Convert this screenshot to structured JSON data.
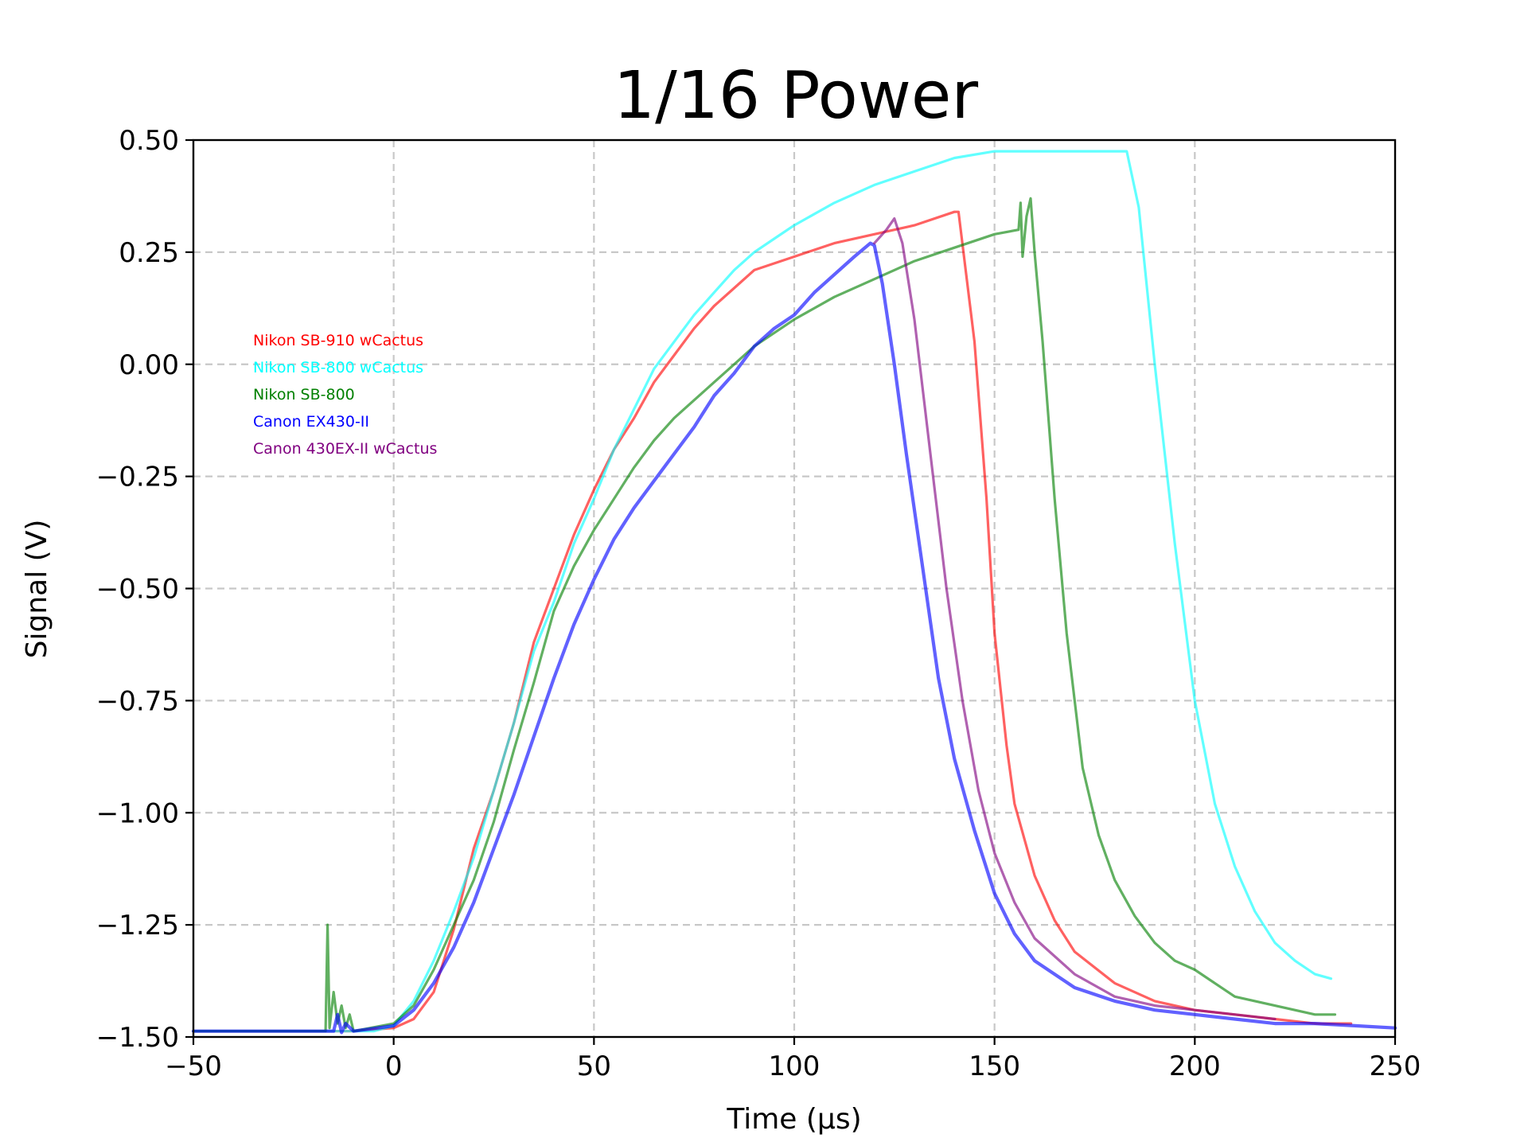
{
  "chart_data": {
    "type": "line",
    "title": "1/16 Power",
    "xlabel": "Time (µs)",
    "ylabel": "Signal (V)",
    "xlim": [
      -50,
      250
    ],
    "ylim": [
      -1.5,
      0.5
    ],
    "x_ticks": [
      -50,
      0,
      50,
      100,
      150,
      200,
      250
    ],
    "x_tick_labels": [
      "−50",
      "0",
      "50",
      "100",
      "150",
      "200",
      "250"
    ],
    "y_ticks": [
      0.5,
      0.25,
      0.0,
      -0.25,
      -0.5,
      -0.75,
      -1.0,
      -1.25,
      -1.5
    ],
    "y_tick_labels": [
      "0.50",
      "0.25",
      "0.00",
      "−0.25",
      "−0.50",
      "−0.75",
      "−1.00",
      "−1.25",
      "−1.50"
    ],
    "grid": true,
    "legend_position": "upper-left",
    "series": [
      {
        "name": "Nikon SB-910 wCactus",
        "color": "#ff0000",
        "points": [
          [
            -50,
            -1.487
          ],
          [
            -10,
            -1.487
          ],
          [
            0,
            -1.48
          ],
          [
            5,
            -1.46
          ],
          [
            10,
            -1.4
          ],
          [
            15,
            -1.26
          ],
          [
            20,
            -1.08
          ],
          [
            25,
            -0.95
          ],
          [
            30,
            -0.8
          ],
          [
            35,
            -0.62
          ],
          [
            40,
            -0.5
          ],
          [
            45,
            -0.38
          ],
          [
            50,
            -0.28
          ],
          [
            55,
            -0.19
          ],
          [
            60,
            -0.12
          ],
          [
            65,
            -0.04
          ],
          [
            70,
            0.02
          ],
          [
            75,
            0.08
          ],
          [
            80,
            0.13
          ],
          [
            85,
            0.17
          ],
          [
            90,
            0.21
          ],
          [
            100,
            0.24
          ],
          [
            110,
            0.27
          ],
          [
            120,
            0.29
          ],
          [
            130,
            0.31
          ],
          [
            140,
            0.34
          ],
          [
            141,
            0.34
          ],
          [
            145,
            0.05
          ],
          [
            148,
            -0.3
          ],
          [
            150,
            -0.6
          ],
          [
            153,
            -0.85
          ],
          [
            155,
            -0.98
          ],
          [
            160,
            -1.14
          ],
          [
            165,
            -1.24
          ],
          [
            170,
            -1.31
          ],
          [
            180,
            -1.38
          ],
          [
            190,
            -1.42
          ],
          [
            200,
            -1.44
          ],
          [
            210,
            -1.45
          ],
          [
            220,
            -1.46
          ],
          [
            230,
            -1.47
          ],
          [
            239,
            -1.47
          ]
        ]
      },
      {
        "name": "Nikon SB-800 wCactus",
        "color": "#00ffff",
        "points": [
          [
            -50,
            -1.487
          ],
          [
            -20,
            -1.487
          ],
          [
            -10,
            -1.487
          ],
          [
            -5,
            -1.487
          ],
          [
            0,
            -1.475
          ],
          [
            5,
            -1.42
          ],
          [
            10,
            -1.33
          ],
          [
            15,
            -1.22
          ],
          [
            20,
            -1.1
          ],
          [
            25,
            -0.95
          ],
          [
            30,
            -0.8
          ],
          [
            35,
            -0.64
          ],
          [
            40,
            -0.53
          ],
          [
            45,
            -0.4
          ],
          [
            50,
            -0.3
          ],
          [
            55,
            -0.19
          ],
          [
            60,
            -0.1
          ],
          [
            65,
            -0.01
          ],
          [
            70,
            0.05
          ],
          [
            75,
            0.11
          ],
          [
            80,
            0.16
          ],
          [
            85,
            0.21
          ],
          [
            90,
            0.25
          ],
          [
            95,
            0.28
          ],
          [
            100,
            0.31
          ],
          [
            110,
            0.36
          ],
          [
            120,
            0.4
          ],
          [
            130,
            0.43
          ],
          [
            140,
            0.46
          ],
          [
            150,
            0.475
          ],
          [
            170,
            0.475
          ],
          [
            183,
            0.475
          ],
          [
            186,
            0.35
          ],
          [
            190,
            0.0
          ],
          [
            195,
            -0.4
          ],
          [
            200,
            -0.75
          ],
          [
            205,
            -0.98
          ],
          [
            210,
            -1.12
          ],
          [
            215,
            -1.22
          ],
          [
            220,
            -1.29
          ],
          [
            225,
            -1.33
          ],
          [
            230,
            -1.36
          ],
          [
            234,
            -1.37
          ]
        ]
      },
      {
        "name": "Nikon SB-800",
        "color": "#008000",
        "points": [
          [
            -50,
            -1.487
          ],
          [
            -17,
            -1.487
          ],
          [
            -16.5,
            -1.25
          ],
          [
            -16,
            -1.48
          ],
          [
            -15,
            -1.4
          ],
          [
            -14,
            -1.47
          ],
          [
            -13,
            -1.43
          ],
          [
            -12,
            -1.48
          ],
          [
            -11,
            -1.45
          ],
          [
            -10,
            -1.487
          ],
          [
            0,
            -1.47
          ],
          [
            5,
            -1.43
          ],
          [
            10,
            -1.35
          ],
          [
            15,
            -1.25
          ],
          [
            20,
            -1.15
          ],
          [
            25,
            -1.02
          ],
          [
            30,
            -0.86
          ],
          [
            35,
            -0.71
          ],
          [
            40,
            -0.55
          ],
          [
            45,
            -0.45
          ],
          [
            50,
            -0.37
          ],
          [
            55,
            -0.3
          ],
          [
            60,
            -0.23
          ],
          [
            65,
            -0.17
          ],
          [
            70,
            -0.12
          ],
          [
            75,
            -0.08
          ],
          [
            80,
            -0.04
          ],
          [
            85,
            0.0
          ],
          [
            90,
            0.04
          ],
          [
            100,
            0.1
          ],
          [
            110,
            0.15
          ],
          [
            120,
            0.19
          ],
          [
            130,
            0.23
          ],
          [
            140,
            0.26
          ],
          [
            150,
            0.29
          ],
          [
            156,
            0.3
          ],
          [
            156.5,
            0.36
          ],
          [
            157,
            0.24
          ],
          [
            158,
            0.33
          ],
          [
            159,
            0.37
          ],
          [
            160,
            0.25
          ],
          [
            162,
            0.05
          ],
          [
            165,
            -0.3
          ],
          [
            168,
            -0.6
          ],
          [
            172,
            -0.9
          ],
          [
            176,
            -1.05
          ],
          [
            180,
            -1.15
          ],
          [
            185,
            -1.23
          ],
          [
            190,
            -1.29
          ],
          [
            195,
            -1.33
          ],
          [
            200,
            -1.35
          ],
          [
            205,
            -1.38
          ],
          [
            210,
            -1.41
          ],
          [
            220,
            -1.43
          ],
          [
            230,
            -1.45
          ],
          [
            235,
            -1.45
          ]
        ]
      },
      {
        "name": "Canon EX430-II",
        "color": "#0000ff",
        "points": [
          [
            -50,
            -1.487
          ],
          [
            -15,
            -1.487
          ],
          [
            -14,
            -1.45
          ],
          [
            -13,
            -1.49
          ],
          [
            -12,
            -1.47
          ],
          [
            -10,
            -1.487
          ],
          [
            0,
            -1.475
          ],
          [
            5,
            -1.44
          ],
          [
            10,
            -1.38
          ],
          [
            15,
            -1.3
          ],
          [
            20,
            -1.2
          ],
          [
            25,
            -1.08
          ],
          [
            30,
            -0.96
          ],
          [
            35,
            -0.83
          ],
          [
            40,
            -0.7
          ],
          [
            45,
            -0.58
          ],
          [
            50,
            -0.48
          ],
          [
            55,
            -0.39
          ],
          [
            60,
            -0.32
          ],
          [
            65,
            -0.26
          ],
          [
            70,
            -0.2
          ],
          [
            75,
            -0.14
          ],
          [
            80,
            -0.07
          ],
          [
            85,
            -0.02
          ],
          [
            90,
            0.04
          ],
          [
            95,
            0.08
          ],
          [
            100,
            0.11
          ],
          [
            105,
            0.16
          ],
          [
            110,
            0.2
          ],
          [
            115,
            0.24
          ],
          [
            119,
            0.27
          ],
          [
            120,
            0.265
          ],
          [
            122,
            0.18
          ],
          [
            125,
            0.0
          ],
          [
            128,
            -0.2
          ],
          [
            132,
            -0.45
          ],
          [
            136,
            -0.7
          ],
          [
            140,
            -0.88
          ],
          [
            145,
            -1.04
          ],
          [
            150,
            -1.18
          ],
          [
            155,
            -1.27
          ],
          [
            160,
            -1.33
          ],
          [
            170,
            -1.39
          ],
          [
            180,
            -1.42
          ],
          [
            190,
            -1.44
          ],
          [
            200,
            -1.45
          ],
          [
            210,
            -1.46
          ],
          [
            220,
            -1.47
          ],
          [
            230,
            -1.47
          ],
          [
            240,
            -1.475
          ],
          [
            250,
            -1.48
          ]
        ]
      },
      {
        "name": "Canon 430EX-II wCactus",
        "color": "#800080",
        "points": [
          [
            120,
            0.27
          ],
          [
            123,
            0.3
          ],
          [
            125,
            0.325
          ],
          [
            127,
            0.27
          ],
          [
            130,
            0.1
          ],
          [
            134,
            -0.2
          ],
          [
            138,
            -0.5
          ],
          [
            142,
            -0.75
          ],
          [
            146,
            -0.95
          ],
          [
            150,
            -1.09
          ],
          [
            155,
            -1.2
          ],
          [
            160,
            -1.28
          ],
          [
            170,
            -1.36
          ],
          [
            180,
            -1.41
          ],
          [
            190,
            -1.43
          ],
          [
            200,
            -1.44
          ],
          [
            210,
            -1.45
          ],
          [
            220,
            -1.46
          ]
        ]
      }
    ]
  }
}
